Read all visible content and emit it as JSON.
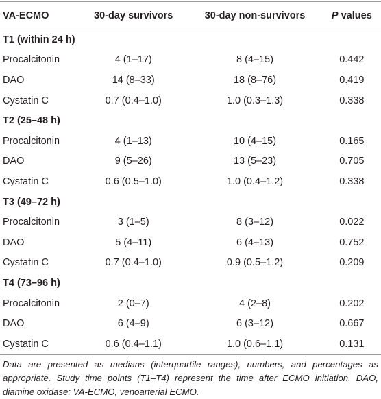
{
  "table": {
    "header": [
      "VA-ECMO",
      "30-day survivors",
      "30-day non-survivors",
      "P values"
    ],
    "sections": [
      {
        "title": "T1 (within 24 h)",
        "rows": [
          [
            "Procalcitonin",
            "4 (1–17)",
            "8 (4–15)",
            "0.442"
          ],
          [
            "DAO",
            "14 (8–33)",
            "18 (8–76)",
            "0.419"
          ],
          [
            "Cystatin C",
            "0.7 (0.4–1.0)",
            "1.0 (0.3–1.3)",
            "0.338"
          ]
        ]
      },
      {
        "title": "T2 (25–48 h)",
        "rows": [
          [
            "Procalcitonin",
            "4 (1–13)",
            "10 (4–15)",
            "0.165"
          ],
          [
            "DAO",
            "9 (5–26)",
            "13 (5–23)",
            "0.705"
          ],
          [
            "Cystatin C",
            "0.6 (0.5–1.0)",
            "1.0 (0.4–1.2)",
            "0.338"
          ]
        ]
      },
      {
        "title": "T3 (49–72 h)",
        "rows": [
          [
            "Procalcitonin",
            "3 (1–5)",
            "8 (3–12)",
            "0.022"
          ],
          [
            "DAO",
            "5 (4–11)",
            "6 (4–13)",
            "0.752"
          ],
          [
            "Cystatin C",
            "0.7 (0.4–1.0)",
            "0.9 (0.5–1.2)",
            "0.209"
          ]
        ]
      },
      {
        "title": "T4 (73–96 h)",
        "rows": [
          [
            "Procalcitonin",
            "2 (0–7)",
            "4 (2–8)",
            "0.202"
          ],
          [
            "DAO",
            "6 (4–9)",
            "6 (3–12)",
            "0.667"
          ],
          [
            "Cystatin C",
            "0.6 (0.4–1.1)",
            "1.0 (0.6–1.1)",
            "0.131"
          ]
        ]
      }
    ]
  },
  "footnote": "Data are presented as medians (interquartile ranges), numbers, and percentages as appropriate. Study time points (T1–T4) represent the time after ECMO initiation. DAO, diamine oxidase; VA-ECMO, venoarterial ECMO."
}
